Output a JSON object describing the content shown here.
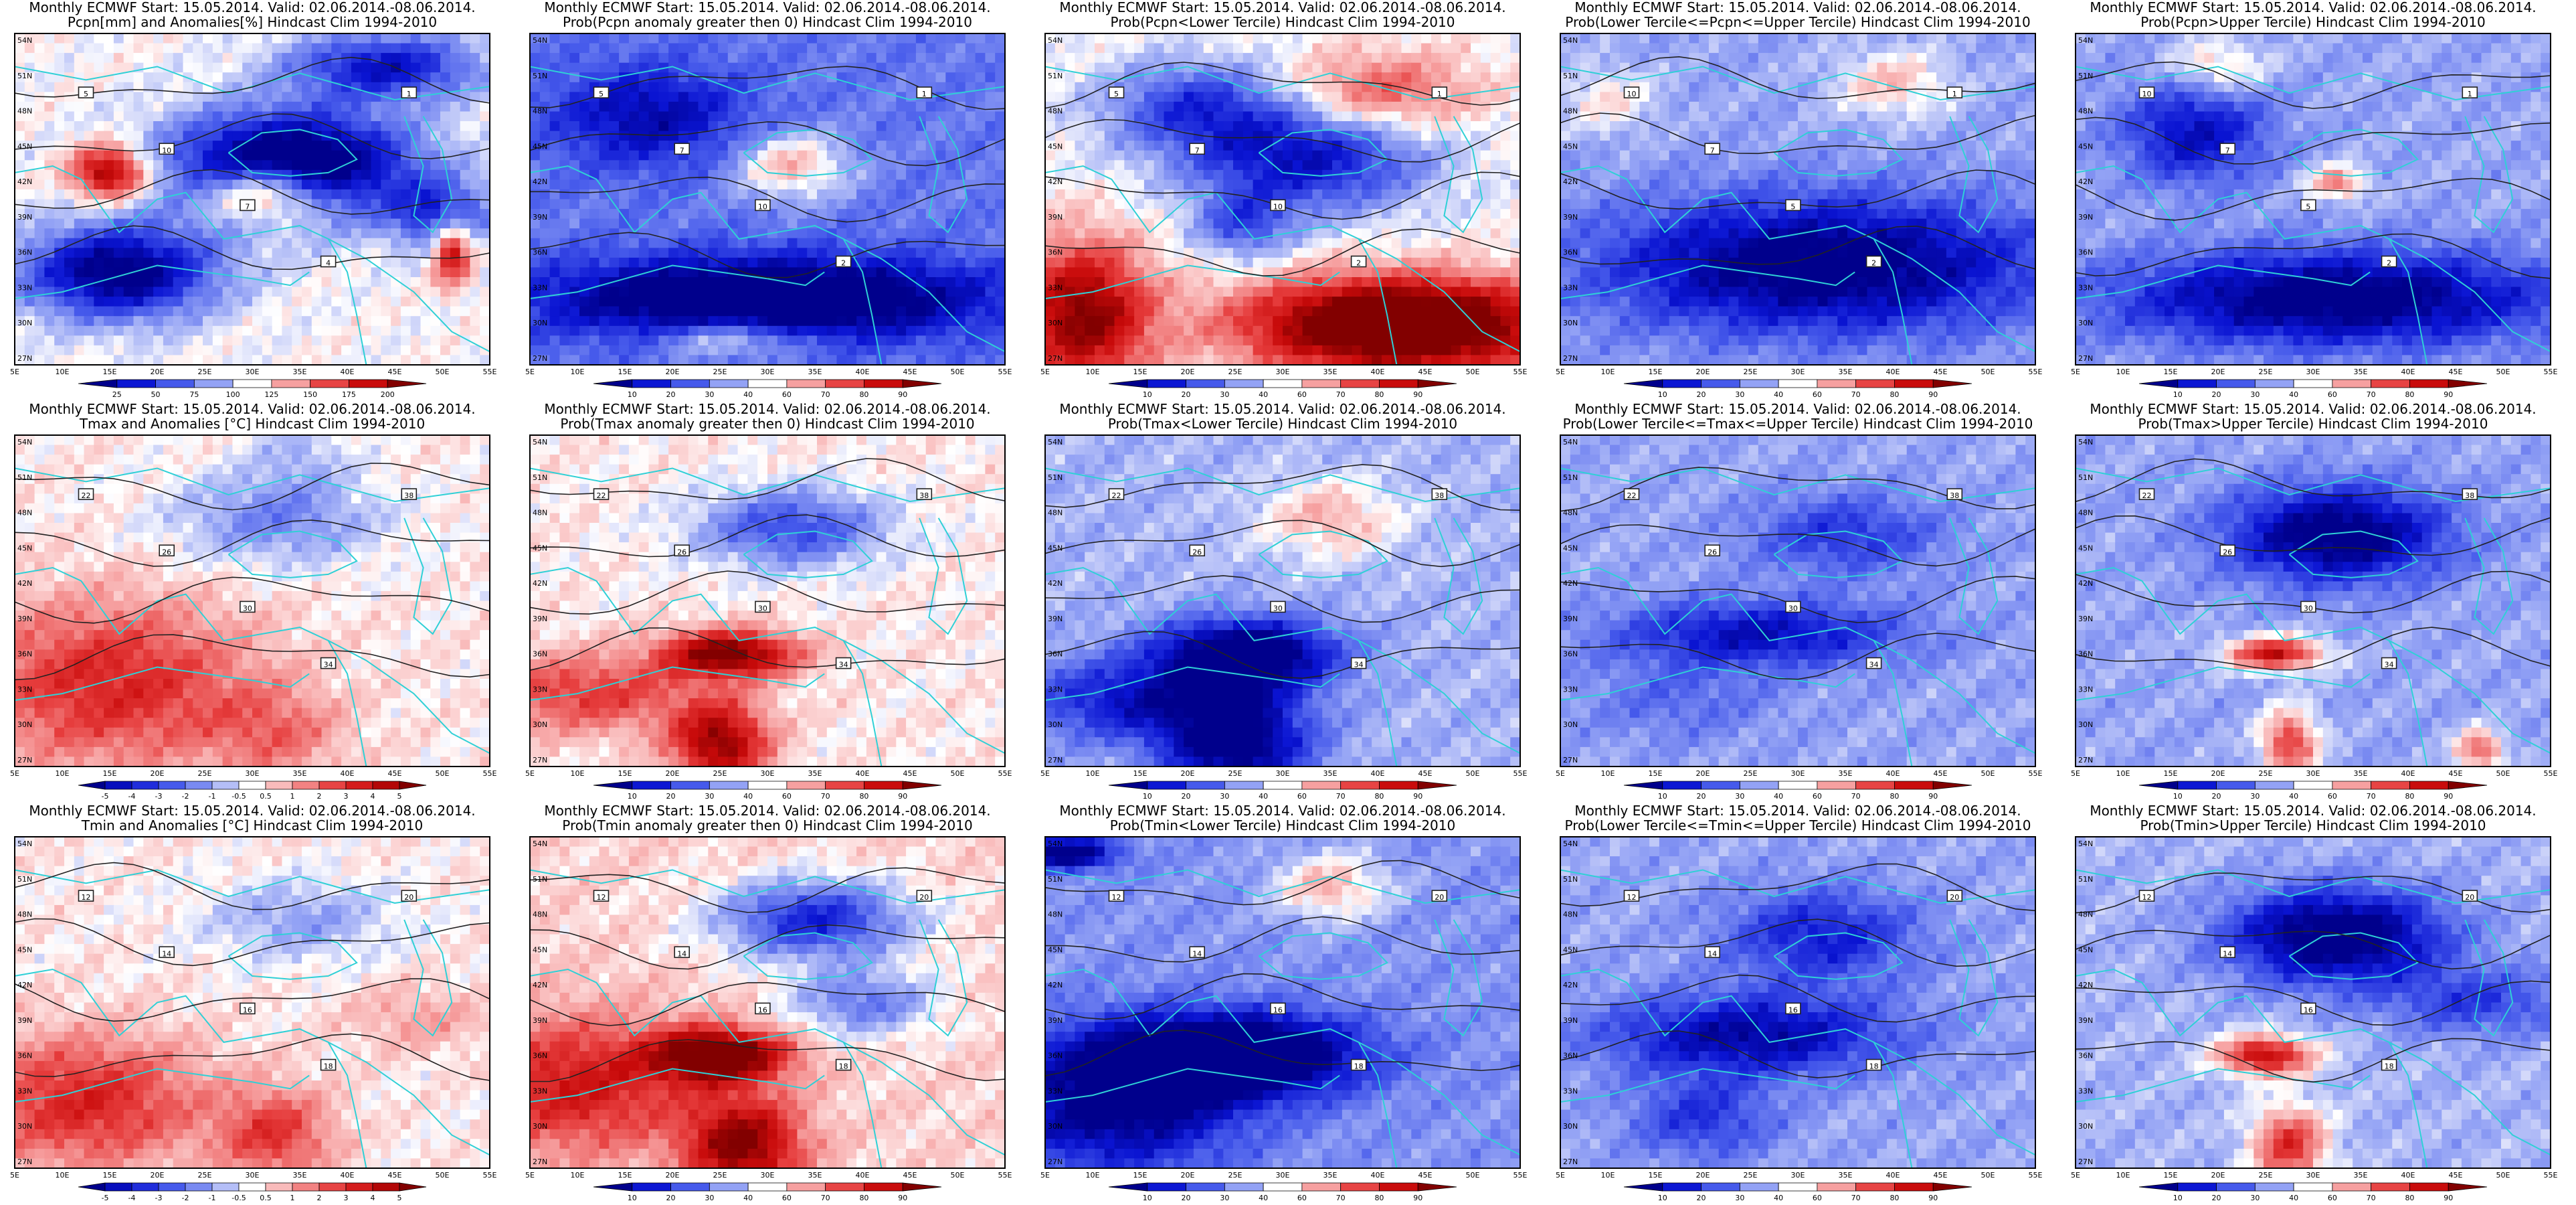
{
  "colors": {
    "contour": "#222222",
    "coast": "#2fd0d6",
    "land_white": "#ffffff",
    "bg": "#ffffff"
  },
  "axes": {
    "lon_ticks": [
      "5E",
      "10E",
      "15E",
      "20E",
      "25E",
      "30E",
      "35E",
      "40E",
      "45E",
      "50E",
      "55E"
    ],
    "lat_ticks": [
      "54N",
      "51N",
      "48N",
      "45N",
      "42N",
      "39N",
      "36N",
      "33N",
      "30N",
      "27N"
    ]
  },
  "panels": [
    {
      "id": "pcpn-anom",
      "title1": "Monthly ECMWF Start: 15.05.2014. Valid: 02.06.2014.-08.06.2014.",
      "title2": "Pcpn[mm] and Anomalies[%] Hindcast Clim 1994-2010",
      "palette": "bwr",
      "base": 0.5,
      "features": [
        [
          -0.7,
          0.58,
          0.4,
          0.25,
          0.16
        ],
        [
          -0.55,
          0.22,
          0.72,
          0.2,
          0.14
        ],
        [
          0.5,
          0.2,
          0.42,
          0.08,
          0.08
        ],
        [
          0.5,
          0.53,
          0.48,
          0.13,
          0.09
        ],
        [
          -0.4,
          0.78,
          0.1,
          0.2,
          0.1
        ],
        [
          -0.35,
          0.9,
          0.55,
          0.1,
          0.1
        ],
        [
          0.45,
          0.92,
          0.65,
          0.04,
          0.1
        ]
      ],
      "colorbar": [
        "25",
        "50",
        "75",
        "100",
        "125",
        "150",
        "175",
        "200"
      ],
      "labels": [
        "5",
        "10",
        "7",
        "4",
        "1"
      ]
    },
    {
      "id": "pcpn-prob-gt0",
      "title1": "Monthly ECMWF Start: 15.05.2014. Valid: 02.06.2014.-08.06.2014.",
      "title2": "Prob(Pcpn anomaly greater then 0) Hindcast Clim 1994-2010",
      "palette": "bwr",
      "base": 0.3,
      "features": [
        [
          -0.5,
          0.5,
          0.8,
          0.45,
          0.12
        ],
        [
          0.3,
          0.55,
          0.4,
          0.12,
          0.1
        ],
        [
          -0.25,
          0.25,
          0.25,
          0.2,
          0.15
        ],
        [
          0.25,
          0.42,
          0.92,
          0.15,
          0.06
        ]
      ],
      "colorbar": [
        "10",
        "20",
        "30",
        "40",
        "60",
        "70",
        "80",
        "90"
      ],
      "labels": [
        "5",
        "7",
        "10",
        "2",
        "1"
      ]
    },
    {
      "id": "pcpn-prob-lower",
      "title1": "Monthly ECMWF Start: 15.05.2014. Valid: 02.06.2014.-08.06.2014.",
      "title2": "Prob(Pcpn<Lower Tercile) Hindcast Clim 1994-2010",
      "palette": "bwr",
      "base": 0.5,
      "features": [
        [
          0.75,
          0.75,
          0.88,
          0.32,
          0.14
        ],
        [
          0.5,
          0.08,
          0.85,
          0.14,
          0.22
        ],
        [
          -0.4,
          0.55,
          0.38,
          0.25,
          0.16
        ],
        [
          -0.3,
          0.32,
          0.22,
          0.2,
          0.14
        ],
        [
          0.25,
          0.7,
          0.18,
          0.2,
          0.12
        ],
        [
          -0.25,
          0.42,
          0.58,
          0.1,
          0.1
        ]
      ],
      "colorbar": [
        "10",
        "20",
        "30",
        "40",
        "60",
        "70",
        "80",
        "90"
      ],
      "labels": [
        "5",
        "7",
        "10",
        "2",
        "1"
      ]
    },
    {
      "id": "pcpn-prob-middle",
      "title1": "Monthly ECMWF Start: 15.05.2014. Valid: 02.06.2014.-08.06.2014.",
      "title2": "Prob(Lower Tercile<=Pcpn<=Upper Tercile) Hindcast Clim 1994-2010",
      "palette": "bwr",
      "base": 0.38,
      "features": [
        [
          -0.45,
          0.55,
          0.7,
          0.45,
          0.2
        ],
        [
          0.2,
          0.7,
          0.15,
          0.12,
          0.1
        ],
        [
          0.15,
          0.1,
          0.2,
          0.1,
          0.1
        ]
      ],
      "colorbar": [
        "10",
        "20",
        "30",
        "40",
        "60",
        "70",
        "80",
        "90"
      ],
      "labels": [
        "10",
        "7",
        "5",
        "2",
        "1"
      ]
    },
    {
      "id": "pcpn-prob-upper",
      "title1": "Monthly ECMWF Start: 15.05.2014. Valid: 02.06.2014.-08.06.2014.",
      "title2": "Prob(Pcpn>Upper Tercile) Hindcast Clim 1994-2010",
      "palette": "bwr",
      "base": 0.38,
      "features": [
        [
          -0.45,
          0.55,
          0.8,
          0.45,
          0.14
        ],
        [
          -0.3,
          0.25,
          0.3,
          0.15,
          0.15
        ],
        [
          0.3,
          0.55,
          0.45,
          0.06,
          0.05
        ],
        [
          0.2,
          0.3,
          0.1,
          0.1,
          0.08
        ]
      ],
      "colorbar": [
        "10",
        "20",
        "30",
        "40",
        "60",
        "70",
        "80",
        "90"
      ],
      "labels": [
        "10",
        "7",
        "5",
        "2",
        "1"
      ]
    },
    {
      "id": "tmax-anom",
      "title1": "Monthly ECMWF Start: 15.05.2014. Valid: 02.06.2014.-08.06.2014.",
      "title2": "Tmax and Anomalies [°C] Hindcast Clim 1994-2010",
      "palette": "bwr",
      "base": 0.52,
      "features": [
        [
          0.3,
          0.2,
          0.75,
          0.3,
          0.25
        ],
        [
          -0.2,
          0.55,
          0.25,
          0.22,
          0.14
        ],
        [
          0.15,
          0.55,
          0.9,
          0.14,
          0.14
        ],
        [
          -0.1,
          0.6,
          0.05,
          0.1,
          0.1
        ]
      ],
      "colorbar": [
        "-5",
        "-4",
        "-3",
        "-2",
        "-1",
        "-0.5",
        "0.5",
        "1",
        "2",
        "3",
        "4",
        "5"
      ],
      "labels": [
        "22",
        "26",
        "30",
        "34",
        "38"
      ]
    },
    {
      "id": "tmax-prob-gt0",
      "title1": "Monthly ECMWF Start: 15.05.2014. Valid: 02.06.2014.-08.06.2014.",
      "title2": "Prob(Tmax anomaly greater then 0) Hindcast Clim 1994-2010",
      "palette": "bwr",
      "base": 0.52,
      "features": [
        [
          0.5,
          0.42,
          0.66,
          0.14,
          0.07
        ],
        [
          0.45,
          0.4,
          0.93,
          0.1,
          0.12
        ],
        [
          -0.3,
          0.55,
          0.28,
          0.2,
          0.12
        ],
        [
          0.25,
          0.12,
          0.78,
          0.25,
          0.12
        ]
      ],
      "colorbar": [
        "10",
        "20",
        "30",
        "40",
        "60",
        "70",
        "80",
        "90"
      ],
      "labels": [
        "22",
        "26",
        "30",
        "34",
        "38"
      ]
    },
    {
      "id": "tmax-prob-lower",
      "title1": "Monthly ECMWF Start: 15.05.2014. Valid: 02.06.2014.-08.06.2014.",
      "title2": "Prob(Tmax<Lower Tercile) Hindcast Clim 1994-2010",
      "palette": "bwr",
      "base": 0.4,
      "features": [
        [
          -0.55,
          0.42,
          0.66,
          0.18,
          0.1
        ],
        [
          -0.45,
          0.4,
          0.93,
          0.15,
          0.15
        ],
        [
          0.2,
          0.6,
          0.25,
          0.15,
          0.12
        ],
        [
          -0.3,
          0.2,
          0.8,
          0.25,
          0.12
        ]
      ],
      "colorbar": [
        "10",
        "20",
        "30",
        "40",
        "60",
        "70",
        "80",
        "90"
      ],
      "labels": [
        "22",
        "26",
        "30",
        "34",
        "38"
      ]
    },
    {
      "id": "tmax-prob-middle",
      "title1": "Monthly ECMWF Start: 15.05.2014. Valid: 02.06.2014.-08.06.2014.",
      "title2": "Prob(Lower Tercile<=Tmax<=Upper Tercile) Hindcast Clim 1994-2010",
      "palette": "bwr",
      "base": 0.38,
      "features": [
        [
          -0.3,
          0.42,
          0.6,
          0.3,
          0.1
        ],
        [
          -0.2,
          0.6,
          0.3,
          0.2,
          0.12
        ],
        [
          -0.1,
          0.25,
          0.8,
          0.2,
          0.12
        ]
      ],
      "colorbar": [
        "10",
        "20",
        "30",
        "40",
        "60",
        "70",
        "80",
        "90"
      ],
      "labels": [
        "22",
        "26",
        "30",
        "34",
        "38"
      ]
    },
    {
      "id": "tmax-prob-upper",
      "title1": "Monthly ECMWF Start: 15.05.2014. Valid: 02.06.2014.-08.06.2014.",
      "title2": "Prob(Tmax>Upper Tercile) Hindcast Clim 1994-2010",
      "palette": "bwr",
      "base": 0.38,
      "features": [
        [
          -0.45,
          0.55,
          0.3,
          0.22,
          0.14
        ],
        [
          0.5,
          0.42,
          0.66,
          0.1,
          0.05
        ],
        [
          0.4,
          0.45,
          0.93,
          0.06,
          0.1
        ],
        [
          0.35,
          0.85,
          0.95,
          0.05,
          0.06
        ]
      ],
      "colorbar": [
        "10",
        "20",
        "30",
        "40",
        "60",
        "70",
        "80",
        "90"
      ],
      "labels": [
        "22",
        "26",
        "30",
        "34",
        "38"
      ]
    },
    {
      "id": "tmin-anom",
      "title1": "Monthly ECMWF Start: 15.05.2014. Valid: 02.06.2014.-08.06.2014.",
      "title2": "Tmin and Anomalies [°C] Hindcast Clim 1994-2010",
      "palette": "bwr",
      "base": 0.52,
      "features": [
        [
          0.3,
          0.15,
          0.8,
          0.25,
          0.2
        ],
        [
          0.25,
          0.55,
          0.9,
          0.12,
          0.14
        ],
        [
          -0.15,
          0.6,
          0.25,
          0.2,
          0.12
        ],
        [
          0.1,
          0.85,
          0.55,
          0.15,
          0.1
        ]
      ],
      "colorbar": [
        "-5",
        "-4",
        "-3",
        "-2",
        "-1",
        "-0.5",
        "0.5",
        "1",
        "2",
        "3",
        "4",
        "5"
      ],
      "labels": [
        "12",
        "14",
        "16",
        "18",
        "20"
      ]
    },
    {
      "id": "tmin-prob-gt0",
      "title1": "Monthly ECMWF Start: 15.05.2014. Valid: 02.06.2014.-08.06.2014.",
      "title2": "Prob(Tmin anomaly greater then 0) Hindcast Clim 1994-2010",
      "palette": "bwr",
      "base": 0.55,
      "features": [
        [
          0.55,
          0.4,
          0.66,
          0.14,
          0.08
        ],
        [
          0.45,
          0.45,
          0.93,
          0.12,
          0.14
        ],
        [
          -0.4,
          0.6,
          0.25,
          0.2,
          0.12
        ],
        [
          0.3,
          0.1,
          0.75,
          0.25,
          0.2
        ],
        [
          -0.25,
          0.7,
          0.5,
          0.15,
          0.1
        ]
      ],
      "colorbar": [
        "10",
        "20",
        "30",
        "40",
        "60",
        "70",
        "80",
        "90"
      ],
      "labels": [
        "12",
        "14",
        "16",
        "18",
        "20"
      ]
    },
    {
      "id": "tmin-prob-lower",
      "title1": "Monthly ECMWF Start: 15.05.2014. Valid: 02.06.2014.-08.06.2014.",
      "title2": "Prob(Tmin<Lower Tercile) Hindcast Clim 1994-2010",
      "palette": "bwr",
      "base": 0.35,
      "features": [
        [
          -0.6,
          0.4,
          0.66,
          0.25,
          0.12
        ],
        [
          -0.4,
          0.15,
          0.8,
          0.25,
          0.2
        ],
        [
          0.25,
          0.6,
          0.15,
          0.12,
          0.1
        ],
        [
          -0.4,
          0.05,
          0.05,
          0.1,
          0.05
        ]
      ],
      "colorbar": [
        "10",
        "20",
        "30",
        "40",
        "60",
        "70",
        "80",
        "90"
      ],
      "labels": [
        "12",
        "14",
        "16",
        "18",
        "20"
      ]
    },
    {
      "id": "tmin-prob-middle",
      "title1": "Monthly ECMWF Start: 15.05.2014. Valid: 02.06.2014.-08.06.2014.",
      "title2": "Prob(Lower Tercile<=Tmin<=Upper Tercile) Hindcast Clim 1994-2010",
      "palette": "bwr",
      "base": 0.38,
      "features": [
        [
          -0.35,
          0.4,
          0.6,
          0.3,
          0.12
        ],
        [
          -0.25,
          0.55,
          0.3,
          0.2,
          0.14
        ],
        [
          -0.2,
          0.3,
          0.85,
          0.15,
          0.12
        ]
      ],
      "colorbar": [
        "10",
        "20",
        "30",
        "40",
        "60",
        "70",
        "80",
        "90"
      ],
      "labels": [
        "12",
        "14",
        "16",
        "18",
        "20"
      ]
    },
    {
      "id": "tmin-prob-upper",
      "title1": "Monthly ECMWF Start: 15.05.2014. Valid: 02.06.2014.-08.06.2014.",
      "title2": "Prob(Tmin>Upper Tercile) Hindcast Clim 1994-2010",
      "palette": "bwr",
      "base": 0.4,
      "features": [
        [
          -0.5,
          0.55,
          0.3,
          0.22,
          0.14
        ],
        [
          0.5,
          0.4,
          0.66,
          0.1,
          0.06
        ],
        [
          0.4,
          0.45,
          0.93,
          0.08,
          0.12
        ],
        [
          -0.2,
          0.85,
          0.5,
          0.2,
          0.1
        ]
      ],
      "colorbar": [
        "10",
        "20",
        "30",
        "40",
        "60",
        "70",
        "80",
        "90"
      ],
      "labels": [
        "12",
        "14",
        "16",
        "18",
        "20"
      ]
    }
  ],
  "chart_data": {
    "type": "heatmap",
    "x_tick_labels": [
      "5E",
      "10E",
      "15E",
      "20E",
      "25E",
      "30E",
      "35E",
      "40E",
      "45E",
      "50E",
      "55E"
    ],
    "y_tick_labels": [
      "54N",
      "51N",
      "48N",
      "45N",
      "42N",
      "39N",
      "36N",
      "33N",
      "30N",
      "27N"
    ],
    "xlim": [
      5,
      55
    ],
    "ylim": [
      25.5,
      55.5
    ]
  }
}
